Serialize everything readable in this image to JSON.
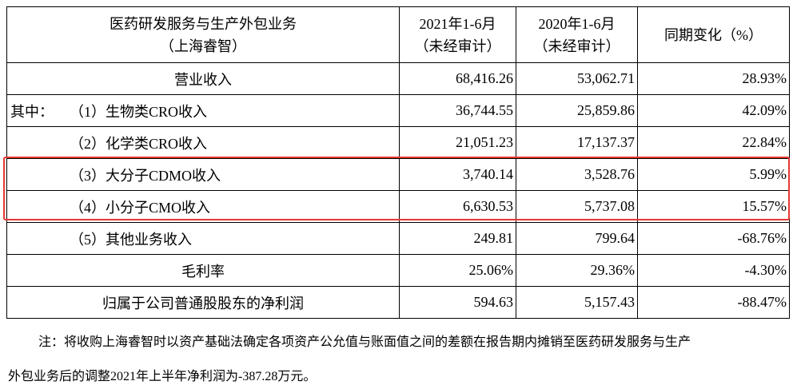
{
  "table": {
    "header": [
      [
        "医药研发服务与生产外包业务",
        "（上海睿智）"
      ],
      [
        "2021年1-6月",
        "（未经审计）"
      ],
      [
        "2020年1-6月",
        "（未经审计）"
      ],
      [
        "同期变化（%）"
      ]
    ],
    "rows": [
      [
        "营业收入",
        "68,416.26",
        "53,062.71",
        "28.93%"
      ],
      [
        "（1）生物类CRO收入",
        "36,744.55",
        "25,859.86",
        "42.09%"
      ],
      [
        "（2）化学类CRO收入",
        "21,051.23",
        "17,137.37",
        "22.84%"
      ],
      [
        "（3）大分子CDMO收入",
        "3,740.14",
        "3,528.76",
        "5.99%"
      ],
      [
        "（4）小分子CMO收入",
        "6,630.53",
        "5,737.08",
        "15.57%"
      ],
      [
        "（5）其他业务收入",
        "249.81",
        "799.64",
        "-68.76%"
      ],
      [
        "毛利率",
        "25.06%",
        "29.36%",
        "-4.30%"
      ],
      [
        "归属于公司普通股股东的净利润",
        "594.63",
        "5,157.43",
        "-88.47%"
      ]
    ],
    "row_prefix": "其中："
  },
  "note": [
    "注：将收购上海睿智时以资产基础法确定各项资产公允值与账面值之间的差额在报告期内摊销至医药研发服务与生产",
    "外包业务后的调整2021年上半年净利润为-387.28万元。"
  ]
}
